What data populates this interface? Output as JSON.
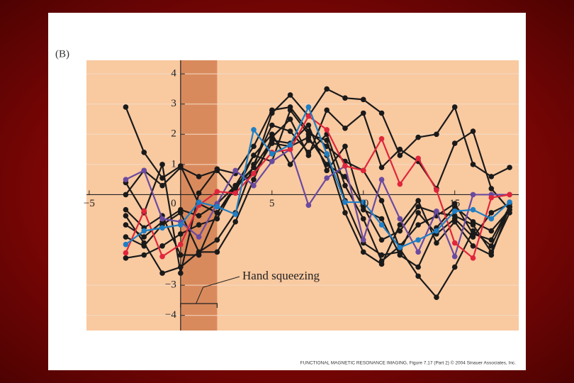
{
  "chart_data": {
    "type": "line",
    "panel_label": "(B)",
    "annotation": "Hand squeezing",
    "footer": "FUNCTIONAL MAGNETIC RESONANCE IMAGING, Figure 7.17 (Part 2) © 2004 Sinauer Associates, Inc.",
    "x": [
      -3,
      -2,
      -1,
      0,
      1,
      2,
      3,
      4,
      5,
      6,
      7,
      8,
      9,
      10,
      11,
      12,
      13,
      14,
      15,
      16,
      17,
      18
    ],
    "xlim": [
      -5.15,
      18.5
    ],
    "ylim": [
      -4.5,
      4.45
    ],
    "xticks": [
      {
        "value": -5,
        "label": "−5"
      },
      0,
      5,
      10,
      15
    ],
    "yticks": [
      4,
      3,
      2,
      1,
      {
        "value": -3,
        "label": "−3"
      },
      {
        "value": -4,
        "label": "−4"
      }
    ],
    "highlight": [
      0,
      2
    ],
    "grid": true,
    "series": [
      {
        "color": "#1a1a1a",
        "values": [
          2.9,
          1.4,
          0.55,
          0.95,
          -0.3,
          -0.6,
          0.3,
          0.9,
          2.7,
          3.3,
          2.6,
          3.5,
          3.2,
          3.15,
          2.7,
          1.3,
          1.9,
          2.0,
          2.9,
          1.0,
          0.6,
          0.9
        ]
      },
      {
        "color": "#1a1a1a",
        "values": [
          0.4,
          -0.6,
          1.0,
          -2.6,
          0.05,
          0.85,
          0.7,
          1.6,
          2.8,
          2.9,
          2.1,
          1.6,
          1.1,
          0.8,
          -0.2,
          -1.8,
          -2.7,
          -3.4,
          -2.4,
          -1.2,
          -1.7,
          -0.4
        ]
      },
      {
        "color": "#1a1a1a",
        "values": [
          -0.7,
          -1.6,
          -2.6,
          -2.4,
          -1.9,
          -1.9,
          -0.9,
          0.5,
          1.9,
          2.5,
          1.3,
          2.8,
          2.2,
          2.7,
          0.9,
          1.5,
          1.1,
          0.2,
          1.7,
          2.1,
          0.2,
          -0.5
        ]
      },
      {
        "color": "#1a1a1a",
        "values": [
          -2.1,
          -2.0,
          -1.7,
          -1.3,
          -1.0,
          -0.8,
          0.3,
          1.3,
          2.0,
          1.0,
          1.8,
          1.3,
          -0.6,
          -1.9,
          -2.3,
          -1.0,
          -0.2,
          -1.6,
          -0.9,
          -1.7,
          -2.0,
          -0.4
        ]
      },
      {
        "color": "#1a1a1a",
        "values": [
          -1.0,
          -1.4,
          -0.9,
          -0.5,
          -0.7,
          -0.3,
          0.3,
          0.7,
          1.7,
          1.6,
          1.9,
          1.0,
          0.6,
          -0.4,
          -1.5,
          -1.2,
          -0.4,
          -0.6,
          -0.7,
          -1.0,
          -1.9,
          -0.6
        ]
      },
      {
        "color": "#1a1a1a",
        "values": [
          0.0,
          0.8,
          0.3,
          0.9,
          0.6,
          0.8,
          0.1,
          1.3,
          1.1,
          2.8,
          2.0,
          1.8,
          -0.2,
          -1.6,
          -2.0,
          -1.9,
          -0.6,
          -1.3,
          -0.8,
          -1.4,
          -0.6,
          -0.3
        ]
      },
      {
        "color": "#1a1a1a",
        "values": [
          -1.4,
          -1.7,
          -1.0,
          -0.6,
          -1.9,
          -1.5,
          -0.6,
          1.0,
          2.3,
          2.1,
          1.4,
          2.0,
          0.3,
          -0.8,
          -2.2,
          -1.7,
          -1.0,
          -0.7,
          -0.3,
          -1.3,
          -1.5,
          -0.4
        ]
      },
      {
        "color": "#1a1a1a",
        "values": [
          -0.5,
          -1.1,
          -0.7,
          -2.0,
          -2.0,
          -0.6,
          0.2,
          0.9,
          1.8,
          1.7,
          2.3,
          0.8,
          1.6,
          -0.5,
          -0.8,
          -2.0,
          -2.4,
          -1.1,
          -0.4,
          -0.9,
          -1.2,
          -0.5
        ]
      },
      {
        "color": "#6a4aa0",
        "values": [
          0.5,
          0.8,
          -0.8,
          -0.9,
          -1.4,
          -0.3,
          0.8,
          0.3,
          1.1,
          1.5,
          -0.35,
          0.55,
          0.95,
          -1.5,
          0.5,
          -0.8,
          -1.9,
          -0.55,
          -2.05,
          0,
          0,
          0
        ]
      },
      {
        "color": "#e0263c",
        "values": [
          -1.93,
          -0.54,
          -2.05,
          -1.65,
          -0.35,
          0.1,
          0.05,
          0.7,
          1.4,
          1.5,
          2.6,
          2.15,
          0.95,
          0.8,
          1.85,
          0.35,
          1.2,
          0.15,
          -1.6,
          -2.1,
          -0.1,
          0
        ]
      },
      {
        "color": "#1f7fc4",
        "values": [
          -1.65,
          -1.2,
          -1.1,
          -1.0,
          -0.25,
          -0.4,
          -0.65,
          2.15,
          1.35,
          1.65,
          2.9,
          1.35,
          -0.25,
          -0.25,
          -1.0,
          -1.75,
          -1.5,
          -1.2,
          -0.55,
          -0.5,
          -0.8,
          -0.25
        ]
      }
    ]
  }
}
